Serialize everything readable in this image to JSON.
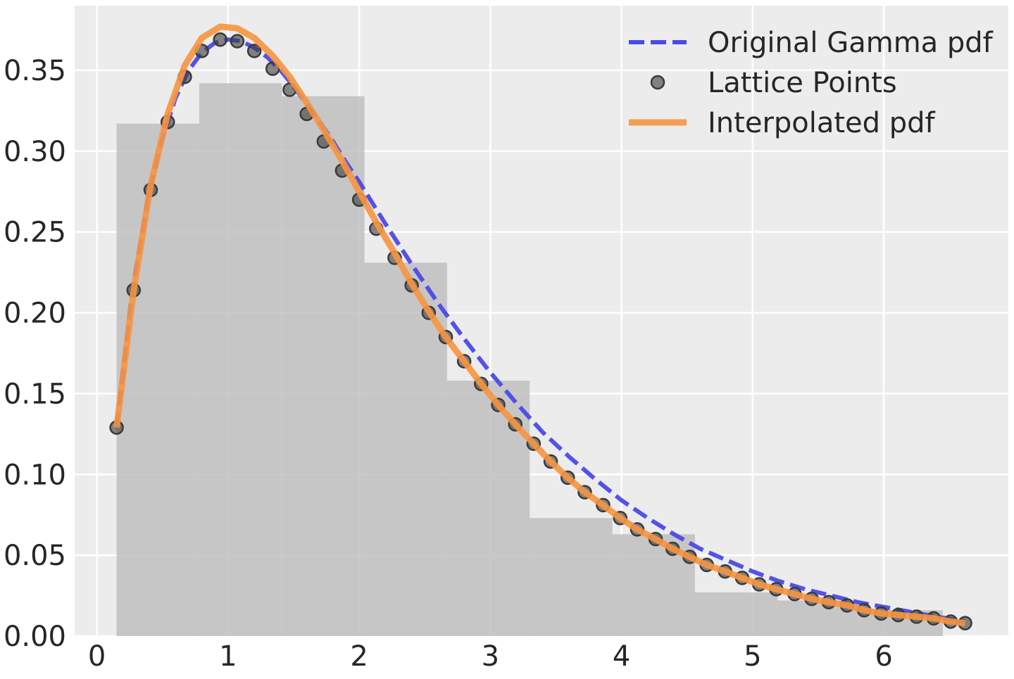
{
  "chart_data": {
    "type": "line",
    "title": "",
    "xlabel": "",
    "ylabel": "",
    "xlim": [
      -0.17,
      6.95
    ],
    "ylim": [
      0,
      0.39
    ],
    "x_ticks": [
      0,
      1,
      2,
      3,
      4,
      5,
      6
    ],
    "x_tick_labels": [
      "0",
      "1",
      "2",
      "3",
      "4",
      "5",
      "6"
    ],
    "y_ticks": [
      0,
      0.05,
      0.1,
      0.15,
      0.2,
      0.25,
      0.3,
      0.35
    ],
    "y_tick_labels": [
      "0.00",
      "0.05",
      "0.10",
      "0.15",
      "0.20",
      "0.25",
      "0.30",
      "0.35"
    ],
    "grid": true,
    "legend_position": "top-right",
    "histogram": {
      "color": "#bfbfbf",
      "bin_edges": [
        0.15,
        0.78,
        1.41,
        2.04,
        2.67,
        3.3,
        3.93,
        4.56,
        5.19,
        5.82,
        6.45
      ],
      "heights": [
        0.317,
        0.342,
        0.334,
        0.231,
        0.158,
        0.073,
        0.063,
        0.027,
        0.022,
        0.016
      ]
    },
    "series": [
      {
        "name": "Original Gamma pdf",
        "style": "dashed-line",
        "color": "#4b4ae8",
        "x": [
          0.15,
          0.27,
          0.4,
          0.5,
          0.6,
          0.7,
          0.8,
          0.9,
          1.0,
          1.1,
          1.2,
          1.3,
          1.4,
          1.5,
          1.6,
          1.7,
          1.8,
          1.9,
          2.0,
          2.2,
          2.4,
          2.6,
          2.8,
          3.0,
          3.2,
          3.4,
          3.6,
          3.8,
          4.0,
          4.2,
          4.4,
          4.6,
          4.8,
          5.0,
          5.2,
          5.4,
          5.6,
          5.8,
          6.0,
          6.2,
          6.4,
          6.62
        ],
        "y": [
          0.129,
          0.214,
          0.276,
          0.308,
          0.333,
          0.35,
          0.361,
          0.367,
          0.369,
          0.368,
          0.364,
          0.358,
          0.35,
          0.34,
          0.329,
          0.318,
          0.306,
          0.293,
          0.281,
          0.255,
          0.23,
          0.206,
          0.184,
          0.163,
          0.144,
          0.126,
          0.111,
          0.097,
          0.084,
          0.073,
          0.063,
          0.054,
          0.047,
          0.04,
          0.034,
          0.029,
          0.025,
          0.021,
          0.018,
          0.015,
          0.012,
          0.009
        ]
      },
      {
        "name": "Lattice Points",
        "style": "markers",
        "color": "#3a3a3a",
        "x": [
          0.15,
          0.28,
          0.41,
          0.54,
          0.67,
          0.8,
          0.94,
          1.07,
          1.2,
          1.34,
          1.47,
          1.6,
          1.73,
          1.87,
          2.0,
          2.13,
          2.27,
          2.4,
          2.53,
          2.66,
          2.8,
          2.93,
          3.06,
          3.19,
          3.33,
          3.46,
          3.59,
          3.72,
          3.86,
          3.99,
          4.12,
          4.26,
          4.39,
          4.52,
          4.65,
          4.79,
          4.92,
          5.05,
          5.18,
          5.32,
          5.45,
          5.58,
          5.72,
          5.85,
          5.98,
          6.11,
          6.25,
          6.38,
          6.51,
          6.62
        ],
        "y": [
          0.129,
          0.214,
          0.276,
          0.318,
          0.346,
          0.362,
          0.369,
          0.368,
          0.362,
          0.351,
          0.338,
          0.323,
          0.306,
          0.288,
          0.27,
          0.252,
          0.234,
          0.217,
          0.2,
          0.185,
          0.17,
          0.156,
          0.143,
          0.131,
          0.119,
          0.108,
          0.098,
          0.089,
          0.081,
          0.073,
          0.066,
          0.06,
          0.054,
          0.049,
          0.044,
          0.04,
          0.036,
          0.032,
          0.029,
          0.026,
          0.023,
          0.021,
          0.019,
          0.016,
          0.014,
          0.013,
          0.012,
          0.011,
          0.009,
          0.008
        ]
      },
      {
        "name": "Interpolated pdf",
        "style": "thick-line",
        "color": "#f79540",
        "x": [
          0.15,
          0.28,
          0.41,
          0.54,
          0.67,
          0.8,
          0.94,
          1.07,
          1.2,
          1.34,
          1.47,
          1.6,
          1.73,
          1.87,
          2.0,
          2.13,
          2.27,
          2.4,
          2.53,
          2.66,
          2.8,
          2.93,
          3.06,
          3.19,
          3.33,
          3.46,
          3.59,
          3.72,
          3.86,
          3.99,
          4.12,
          4.26,
          4.39,
          4.52,
          4.65,
          4.79,
          4.92,
          5.05,
          5.18,
          5.32,
          5.45,
          5.58,
          5.72,
          5.85,
          5.98,
          6.11,
          6.25,
          6.38,
          6.51,
          6.62
        ],
        "y": [
          0.129,
          0.214,
          0.279,
          0.323,
          0.353,
          0.37,
          0.377,
          0.376,
          0.37,
          0.359,
          0.346,
          0.33,
          0.313,
          0.294,
          0.275,
          0.256,
          0.237,
          0.218,
          0.201,
          0.185,
          0.17,
          0.156,
          0.143,
          0.131,
          0.119,
          0.108,
          0.098,
          0.089,
          0.081,
          0.073,
          0.066,
          0.06,
          0.054,
          0.049,
          0.044,
          0.04,
          0.036,
          0.032,
          0.029,
          0.026,
          0.023,
          0.021,
          0.019,
          0.016,
          0.014,
          0.013,
          0.012,
          0.011,
          0.009,
          0.008
        ]
      }
    ],
    "colors": {
      "plot_background": "#ececec",
      "grid": "#ffffff",
      "text": "#262626"
    }
  }
}
